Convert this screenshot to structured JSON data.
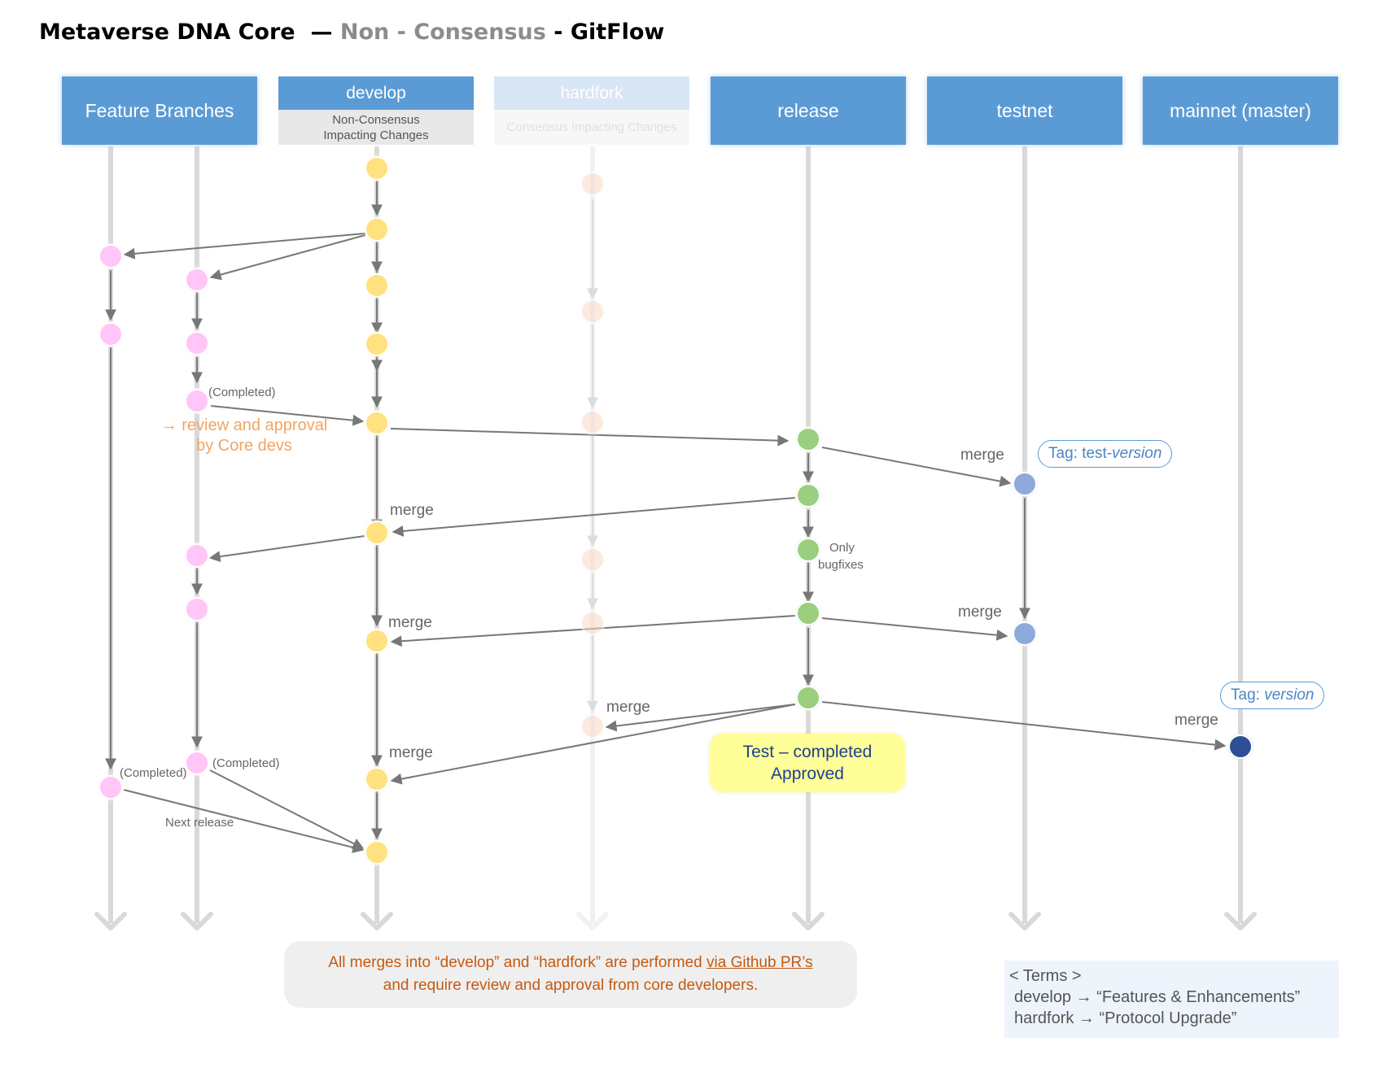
{
  "title": {
    "main": "Metaverse DNA Core",
    "dash": "—",
    "non": "Non",
    "sep": "-",
    "consensus": "Consensus",
    "sep2": "-",
    "gitflow": "GitFlow"
  },
  "headers": {
    "feature": "Feature Branches",
    "develop": "develop",
    "develop_sub_1": "Non-Consensus",
    "develop_sub_2": "Impacting Changes",
    "hardfork": "hardfork",
    "hardfork_sub": "Consensus Impacting Changes",
    "release": "release",
    "testnet": "testnet",
    "mainnet": "mainnet (master)"
  },
  "labels": {
    "completed_1": "(Completed)",
    "completed_2": "(Completed)",
    "completed_3": "(Completed)",
    "review_1": "→ review and approval",
    "review_2": "by Core devs",
    "merge_testnet_1": "merge",
    "merge_develop_1": "merge",
    "only": "Only",
    "bugfixes": "bugfixes",
    "merge_testnet_2": "merge",
    "merge_develop_2": "merge",
    "merge_hardfork": "merge",
    "merge_develop_3": "merge",
    "merge_mainnet": "merge",
    "next_release": "Next release"
  },
  "tags": {
    "test_prefix": "Tag: test-",
    "test_version": "version",
    "main_prefix": "Tag: ",
    "main_version": "version"
  },
  "approved": {
    "line1": "Test – completed",
    "line2": "Approved"
  },
  "footnote": {
    "line1_a": "All merges into “develop” and “hardfork” are performed ",
    "line1_link": "via Github PR’s",
    "line2": "and require review and approval from core developers."
  },
  "terms": {
    "heading": "< Terms >",
    "develop": "develop → “Features & Enhancements”",
    "hardfork": "hardfork → “Protocol Upgrade”"
  },
  "colors": {
    "header_blue": "#5b9bd5",
    "feature_pink": "#ffc6f7",
    "develop_yellow": "#ffe180",
    "hardfork_peach": "#fbd9c6",
    "release_green": "#9bcf80",
    "testnet_blue": "#8eaadb",
    "mainnet_navy": "#2f4f94",
    "lane_grey": "#d9d9d9",
    "arrow_grey": "#777777"
  }
}
